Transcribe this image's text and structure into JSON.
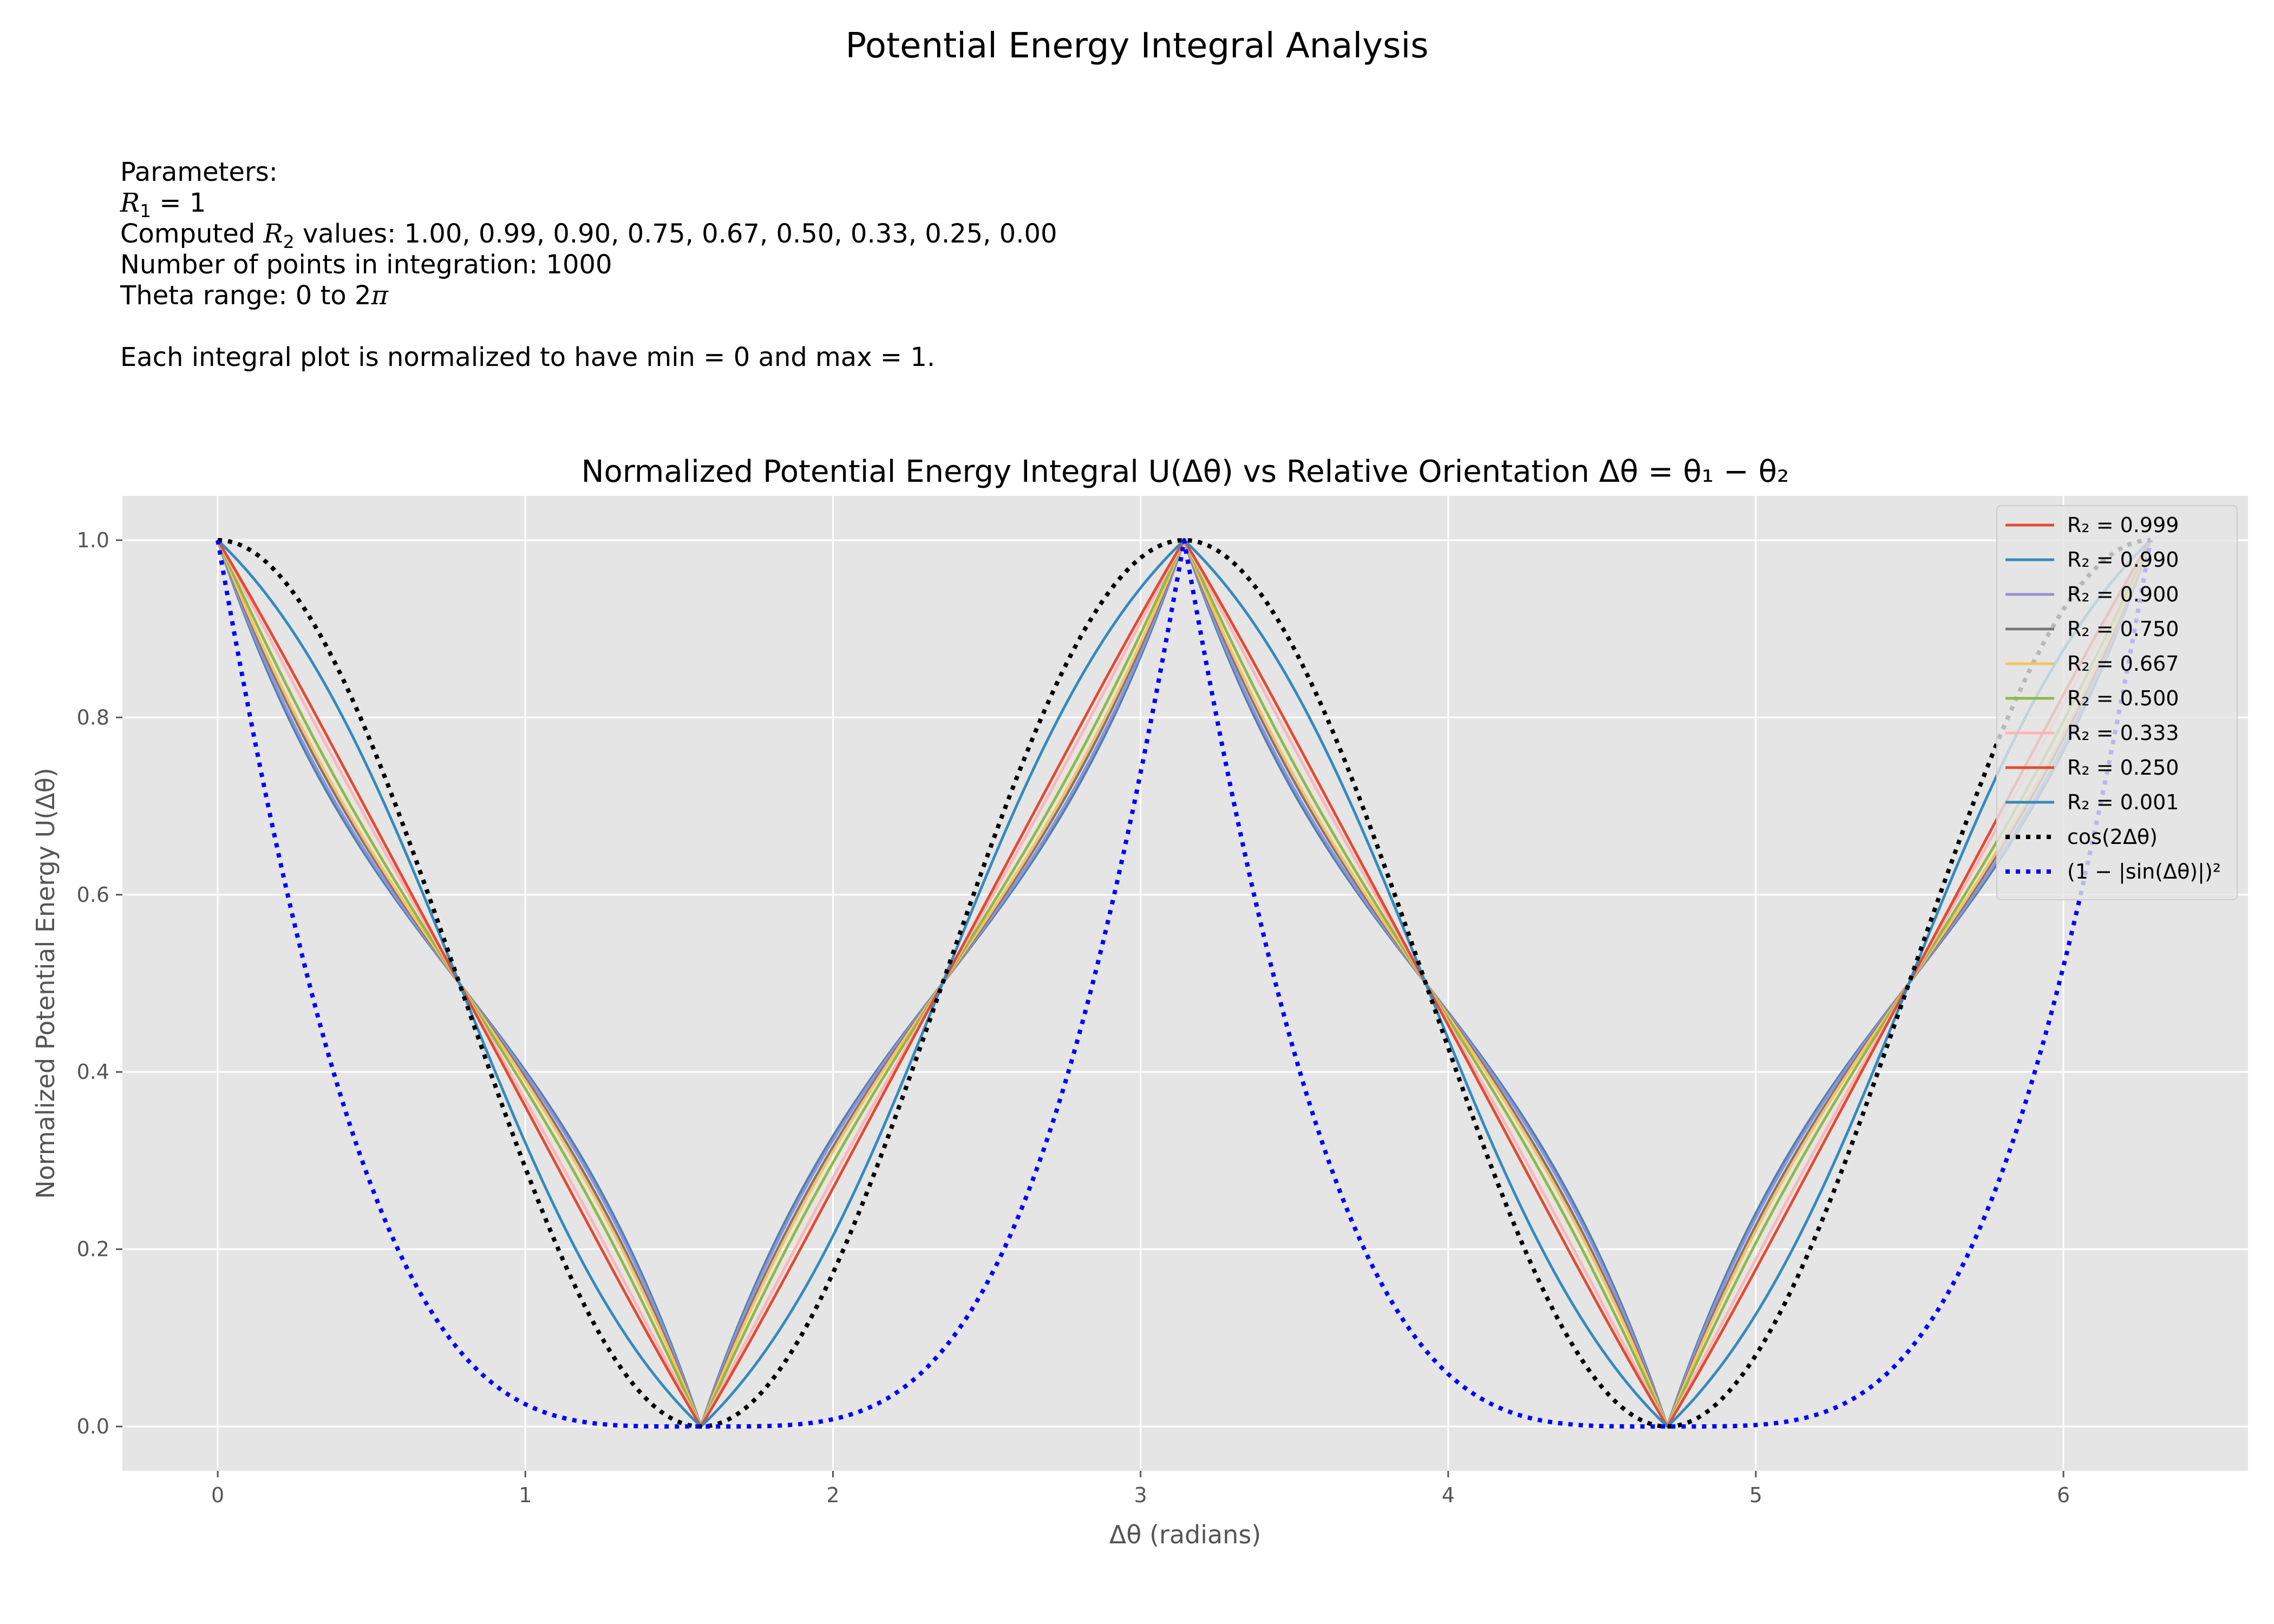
{
  "figure": {
    "title": "Potential Energy Integral Analysis",
    "params": {
      "heading": "Parameters:",
      "r1_prefix": "R",
      "r1_sub": "1",
      "r1_suffix": " = 1",
      "r2_prefix": "Computed ",
      "r2_sub": "2",
      "r2_suffix": " values: 1.00, 0.99, 0.90, 0.75, 0.67, 0.50, 0.33, 0.25, 0.00",
      "npoints": "Number of points in integration: 1000",
      "theta_prefix": "Theta range: 0 to 2",
      "pi": "π",
      "normalized": "Each integral plot is normalized to have min = 0 and max = 1."
    }
  },
  "chart_data": {
    "type": "line",
    "title": "Normalized Potential Energy Integral U(Δθ) vs Relative Orientation Δθ = θ₁ − θ₂",
    "xlabel": "Δθ (radians)",
    "ylabel": "Normalized Potential Energy U(Δθ)",
    "xlim": [
      -0.31,
      6.6
    ],
    "ylim": [
      -0.05,
      1.05
    ],
    "xticks": [
      "0",
      "1",
      "2",
      "3",
      "4",
      "5",
      "6"
    ],
    "yticks": [
      "0.0",
      "0.2",
      "0.4",
      "0.6",
      "0.8",
      "1.0"
    ],
    "x_range": [
      0,
      6.2832
    ],
    "grid": true,
    "background": "#e5e5e5",
    "legend_position": "top-right",
    "series": [
      {
        "name": "R₂ = 0.999",
        "color": "#e24a33",
        "style": "solid",
        "r2": 0.999
      },
      {
        "name": "R₂ = 0.990",
        "color": "#348abd",
        "style": "solid",
        "r2": 0.99
      },
      {
        "name": "R₂ = 0.900",
        "color": "#988ed5",
        "style": "solid",
        "r2": 0.9
      },
      {
        "name": "R₂ = 0.750",
        "color": "#777777",
        "style": "solid",
        "r2": 0.75
      },
      {
        "name": "R₂ = 0.667",
        "color": "#fbc15e",
        "style": "solid",
        "r2": 0.667
      },
      {
        "name": "R₂ = 0.500",
        "color": "#8eba42",
        "style": "solid",
        "r2": 0.5
      },
      {
        "name": "R₂ = 0.333",
        "color": "#ffb5b8",
        "style": "solid",
        "r2": 0.333
      },
      {
        "name": "R₂ = 0.250",
        "color": "#e24a33",
        "style": "solid",
        "r2": 0.25
      },
      {
        "name": "R₂ = 0.001",
        "color": "#348abd",
        "style": "solid",
        "r2": 0.001
      },
      {
        "name": "cos(2Δθ)",
        "color": "#000000",
        "style": "dotted",
        "formula": "cos2"
      },
      {
        "name": "(1 − |sin(Δθ)|)²",
        "color": "#0000ff",
        "style": "dotted",
        "formula": "one_minus_abs_sin_sq"
      }
    ]
  }
}
